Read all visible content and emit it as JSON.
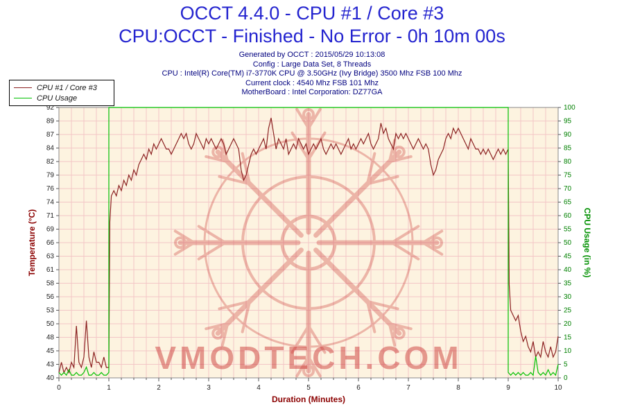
{
  "header": {
    "title": "OCCT 4.4.0 - CPU #1 / Core #3",
    "subtitle": "CPU:OCCT - Finished - No Error - 0h 10m 00s"
  },
  "info_lines": [
    "Generated by OCCT : 2015/05/29 10:13:08",
    "Config : Large Data Set, 8 Threads",
    "CPU : Intel(R) Core(TM) i7-3770K CPU @ 3.50GHz (Ivy Bridge) 3500 Mhz FSB 100 Mhz",
    "Current clock : 4540 Mhz FSB 101 Mhz",
    "MotherBoard : Intel Corporation: DZ77GA"
  ],
  "legend": {
    "items": [
      {
        "label": "CPU #1 / Core #3",
        "color": "#8b2020"
      },
      {
        "label": "CPU Usage",
        "color": "#00c000"
      }
    ]
  },
  "watermark": {
    "text": "VMODTECH.COM",
    "color": "#c82828"
  },
  "chart_data": {
    "type": "line",
    "title": "OCCT 4.4.0 - CPU #1 / Core #3",
    "plot_bg": "#fdf3e0",
    "grid_color": "#f3c6c6",
    "border_color": "#8a8a8a",
    "x_axis": {
      "label": "Duration (Minutes)",
      "range": [
        0,
        10
      ],
      "ticks": [
        0,
        1,
        2,
        3,
        4,
        5,
        6,
        7,
        8,
        9,
        10
      ],
      "minor_grid_step": 0.25
    },
    "y_left": {
      "label": "Temperature (°C)",
      "range": [
        40,
        92
      ],
      "ticks": [
        92,
        89,
        87,
        84,
        82,
        79,
        76,
        74,
        71,
        69,
        66,
        63,
        61,
        58,
        56,
        53,
        50,
        48,
        45,
        43,
        40
      ],
      "tick_color": "#222222"
    },
    "y_right": {
      "label": "CPU Usage (in %)",
      "range": [
        0,
        100
      ],
      "ticks": [
        100,
        95,
        90,
        85,
        80,
        75,
        70,
        65,
        60,
        55,
        50,
        45,
        40,
        35,
        30,
        25,
        20,
        15,
        10,
        5,
        0
      ],
      "tick_color": "#008000"
    },
    "series": [
      {
        "name": "CPU #1 / Core #3",
        "axis": "left",
        "color": "#8b2020",
        "points": [
          [
            0,
            41
          ],
          [
            0.05,
            43
          ],
          [
            0.1,
            41
          ],
          [
            0.15,
            42
          ],
          [
            0.2,
            41
          ],
          [
            0.25,
            43
          ],
          [
            0.3,
            42
          ],
          [
            0.35,
            50
          ],
          [
            0.4,
            43
          ],
          [
            0.45,
            42
          ],
          [
            0.5,
            44
          ],
          [
            0.55,
            51
          ],
          [
            0.6,
            44
          ],
          [
            0.65,
            42
          ],
          [
            0.7,
            45
          ],
          [
            0.75,
            43
          ],
          [
            0.8,
            43
          ],
          [
            0.85,
            42
          ],
          [
            0.9,
            44
          ],
          [
            0.95,
            42
          ],
          [
            1,
            42
          ],
          [
            1.02,
            70
          ],
          [
            1.05,
            75
          ],
          [
            1.1,
            76
          ],
          [
            1.15,
            75
          ],
          [
            1.2,
            77
          ],
          [
            1.25,
            76
          ],
          [
            1.3,
            78
          ],
          [
            1.35,
            77
          ],
          [
            1.4,
            79
          ],
          [
            1.45,
            78
          ],
          [
            1.5,
            80
          ],
          [
            1.55,
            79
          ],
          [
            1.6,
            81
          ],
          [
            1.65,
            82
          ],
          [
            1.7,
            83
          ],
          [
            1.75,
            82
          ],
          [
            1.8,
            84
          ],
          [
            1.85,
            83
          ],
          [
            1.9,
            85
          ],
          [
            1.95,
            84
          ],
          [
            2,
            85
          ],
          [
            2.05,
            86
          ],
          [
            2.1,
            85
          ],
          [
            2.15,
            84
          ],
          [
            2.2,
            84
          ],
          [
            2.25,
            83
          ],
          [
            2.3,
            84
          ],
          [
            2.35,
            85
          ],
          [
            2.4,
            86
          ],
          [
            2.45,
            87
          ],
          [
            2.5,
            86
          ],
          [
            2.55,
            87
          ],
          [
            2.6,
            85
          ],
          [
            2.65,
            84
          ],
          [
            2.7,
            85
          ],
          [
            2.75,
            87
          ],
          [
            2.8,
            86
          ],
          [
            2.85,
            85
          ],
          [
            2.9,
            84
          ],
          [
            2.95,
            86
          ],
          [
            3,
            85
          ],
          [
            3.05,
            86
          ],
          [
            3.1,
            85
          ],
          [
            3.15,
            84
          ],
          [
            3.2,
            85
          ],
          [
            3.25,
            86
          ],
          [
            3.3,
            85
          ],
          [
            3.35,
            83
          ],
          [
            3.4,
            84
          ],
          [
            3.45,
            85
          ],
          [
            3.5,
            86
          ],
          [
            3.55,
            85
          ],
          [
            3.6,
            84
          ],
          [
            3.65,
            80
          ],
          [
            3.7,
            78
          ],
          [
            3.75,
            79
          ],
          [
            3.8,
            81
          ],
          [
            3.85,
            83
          ],
          [
            3.9,
            84
          ],
          [
            3.95,
            83
          ],
          [
            4,
            84
          ],
          [
            4.05,
            85
          ],
          [
            4.1,
            86
          ],
          [
            4.15,
            84
          ],
          [
            4.2,
            88
          ],
          [
            4.25,
            90
          ],
          [
            4.3,
            87
          ],
          [
            4.35,
            84
          ],
          [
            4.4,
            86
          ],
          [
            4.45,
            85
          ],
          [
            4.5,
            84
          ],
          [
            4.55,
            86
          ],
          [
            4.6,
            83
          ],
          [
            4.65,
            84
          ],
          [
            4.7,
            85
          ],
          [
            4.75,
            84
          ],
          [
            4.8,
            86
          ],
          [
            4.85,
            85
          ],
          [
            4.9,
            84
          ],
          [
            4.95,
            85
          ],
          [
            5,
            83
          ],
          [
            5.05,
            84
          ],
          [
            5.1,
            85
          ],
          [
            5.15,
            84
          ],
          [
            5.2,
            85
          ],
          [
            5.25,
            86
          ],
          [
            5.3,
            84
          ],
          [
            5.35,
            83
          ],
          [
            5.4,
            84
          ],
          [
            5.45,
            85
          ],
          [
            5.5,
            84
          ],
          [
            5.55,
            85
          ],
          [
            5.6,
            84
          ],
          [
            5.65,
            83
          ],
          [
            5.7,
            84
          ],
          [
            5.75,
            85
          ],
          [
            5.8,
            86
          ],
          [
            5.85,
            84
          ],
          [
            5.9,
            85
          ],
          [
            5.95,
            84
          ],
          [
            6,
            85
          ],
          [
            6.05,
            86
          ],
          [
            6.1,
            85
          ],
          [
            6.15,
            86
          ],
          [
            6.2,
            87
          ],
          [
            6.25,
            85
          ],
          [
            6.3,
            84
          ],
          [
            6.35,
            85
          ],
          [
            6.4,
            86
          ],
          [
            6.45,
            89
          ],
          [
            6.5,
            87
          ],
          [
            6.55,
            88
          ],
          [
            6.6,
            86
          ],
          [
            6.65,
            85
          ],
          [
            6.7,
            84
          ],
          [
            6.75,
            87
          ],
          [
            6.8,
            86
          ],
          [
            6.85,
            87
          ],
          [
            6.9,
            86
          ],
          [
            6.95,
            87
          ],
          [
            7,
            86
          ],
          [
            7.05,
            85
          ],
          [
            7.1,
            84
          ],
          [
            7.15,
            85
          ],
          [
            7.2,
            86
          ],
          [
            7.25,
            85
          ],
          [
            7.3,
            84
          ],
          [
            7.35,
            85
          ],
          [
            7.4,
            84
          ],
          [
            7.45,
            81
          ],
          [
            7.5,
            79
          ],
          [
            7.55,
            80
          ],
          [
            7.6,
            82
          ],
          [
            7.65,
            83
          ],
          [
            7.7,
            84
          ],
          [
            7.75,
            86
          ],
          [
            7.8,
            87
          ],
          [
            7.85,
            86
          ],
          [
            7.9,
            88
          ],
          [
            7.95,
            87
          ],
          [
            8,
            88
          ],
          [
            8.05,
            87
          ],
          [
            8.1,
            86
          ],
          [
            8.15,
            85
          ],
          [
            8.2,
            84
          ],
          [
            8.25,
            86
          ],
          [
            8.3,
            85
          ],
          [
            8.35,
            84
          ],
          [
            8.4,
            84
          ],
          [
            8.45,
            83
          ],
          [
            8.5,
            84
          ],
          [
            8.55,
            83
          ],
          [
            8.6,
            84
          ],
          [
            8.65,
            83
          ],
          [
            8.7,
            82
          ],
          [
            8.75,
            83
          ],
          [
            8.8,
            84
          ],
          [
            8.85,
            83
          ],
          [
            8.9,
            84
          ],
          [
            8.95,
            83
          ],
          [
            9,
            84
          ],
          [
            9.02,
            58
          ],
          [
            9.05,
            53
          ],
          [
            9.1,
            52
          ],
          [
            9.15,
            51
          ],
          [
            9.2,
            52
          ],
          [
            9.25,
            49
          ],
          [
            9.3,
            47
          ],
          [
            9.35,
            48
          ],
          [
            9.4,
            46
          ],
          [
            9.45,
            45
          ],
          [
            9.5,
            47
          ],
          [
            9.55,
            44
          ],
          [
            9.6,
            45
          ],
          [
            9.65,
            44
          ],
          [
            9.7,
            47
          ],
          [
            9.75,
            45
          ],
          [
            9.8,
            44
          ],
          [
            9.85,
            46
          ],
          [
            9.9,
            44
          ],
          [
            9.95,
            45
          ],
          [
            10,
            48
          ]
        ]
      },
      {
        "name": "CPU Usage",
        "axis": "right",
        "color": "#00c000",
        "points": [
          [
            0,
            2
          ],
          [
            0.05,
            1
          ],
          [
            0.1,
            2
          ],
          [
            0.15,
            1
          ],
          [
            0.2,
            3
          ],
          [
            0.25,
            1
          ],
          [
            0.3,
            1
          ],
          [
            0.35,
            2
          ],
          [
            0.4,
            1
          ],
          [
            0.45,
            1
          ],
          [
            0.5,
            2
          ],
          [
            0.55,
            4
          ],
          [
            0.6,
            1
          ],
          [
            0.65,
            1
          ],
          [
            0.7,
            2
          ],
          [
            0.75,
            1
          ],
          [
            0.8,
            1
          ],
          [
            0.85,
            2
          ],
          [
            0.9,
            1
          ],
          [
            0.95,
            1
          ],
          [
            1,
            2
          ],
          [
            1,
            100
          ],
          [
            9,
            100
          ],
          [
            9,
            2
          ],
          [
            9.05,
            1
          ],
          [
            9.1,
            2
          ],
          [
            9.15,
            1
          ],
          [
            9.2,
            2
          ],
          [
            9.25,
            1
          ],
          [
            9.3,
            2
          ],
          [
            9.35,
            1
          ],
          [
            9.4,
            1
          ],
          [
            9.45,
            2
          ],
          [
            9.5,
            1
          ],
          [
            9.55,
            8
          ],
          [
            9.6,
            2
          ],
          [
            9.65,
            1
          ],
          [
            9.7,
            2
          ],
          [
            9.75,
            1
          ],
          [
            9.8,
            3
          ],
          [
            9.85,
            1
          ],
          [
            9.9,
            2
          ],
          [
            9.95,
            1
          ],
          [
            10,
            5
          ]
        ]
      }
    ]
  }
}
